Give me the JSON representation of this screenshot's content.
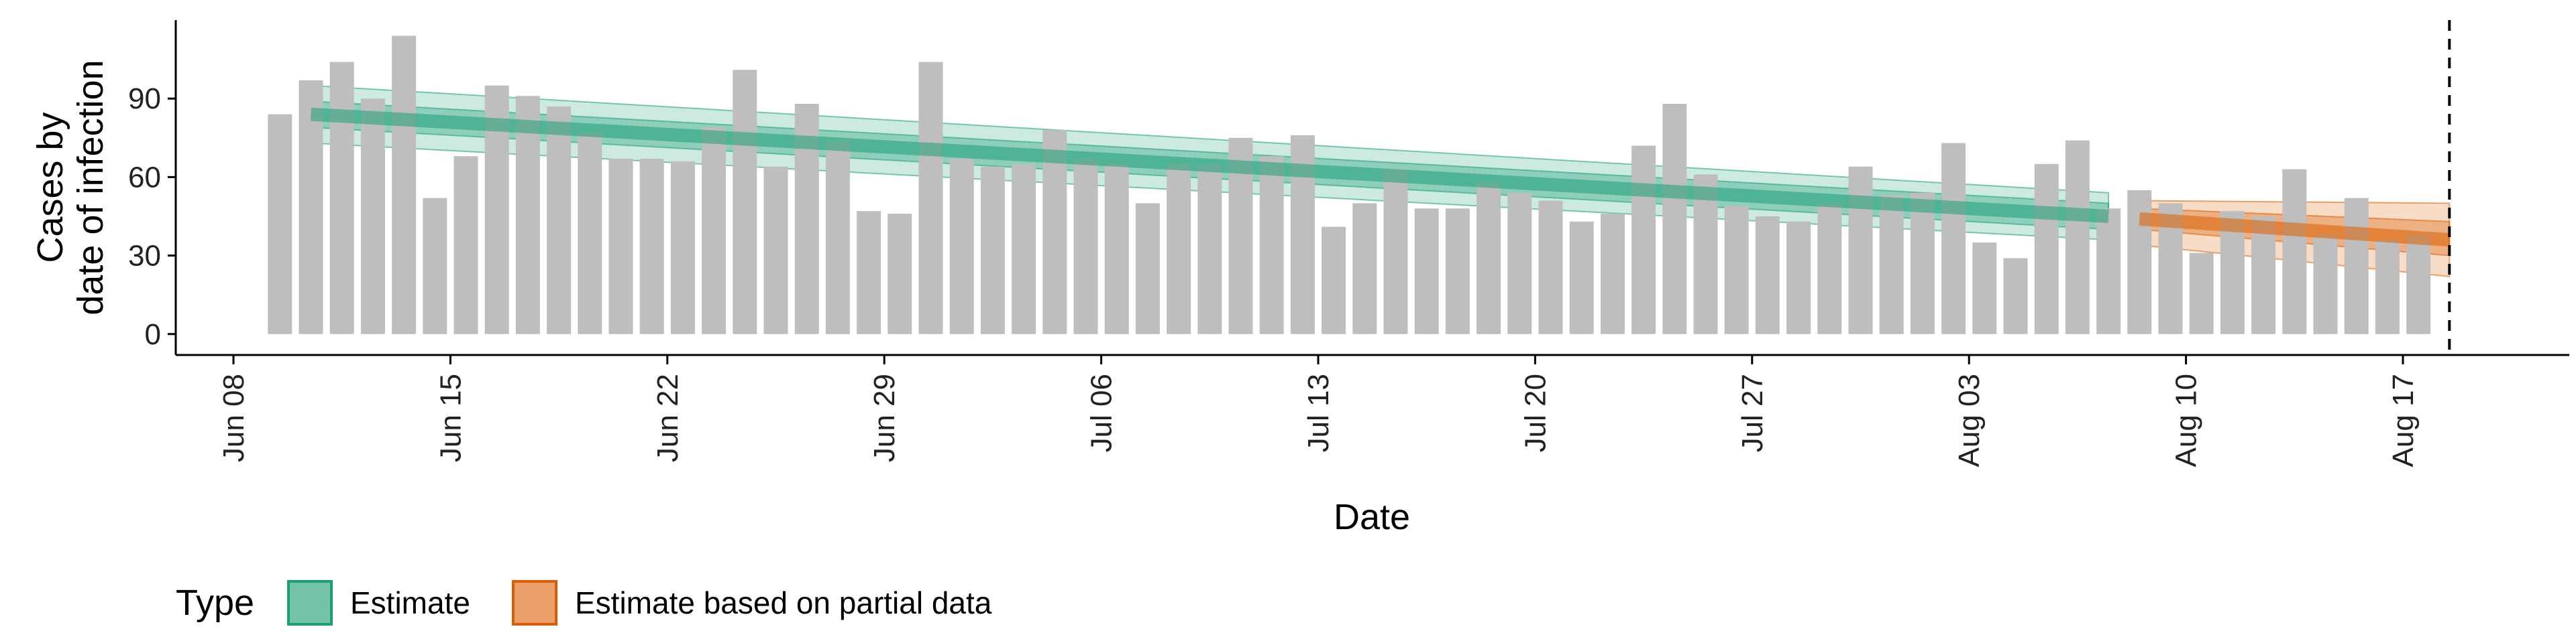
{
  "chart_data": {
    "type": "bar",
    "xlabel": "Date",
    "ylabel_lines": [
      "Cases by",
      "date of infection"
    ],
    "ylim": [
      -8,
      120
    ],
    "yticks": [
      0,
      30,
      60,
      90
    ],
    "x_start": "2020-06-08",
    "x_tick_labels": [
      "Jun 08",
      "Jun 15",
      "Jun 22",
      "Jun 29",
      "Jul 06",
      "Jul 13",
      "Jul 20",
      "Jul 27",
      "Aug 03",
      "Aug 10",
      "Aug 17"
    ],
    "vline_date": "Aug 18",
    "dates": [
      "Jun 09",
      "Jun 10",
      "Jun 11",
      "Jun 12",
      "Jun 13",
      "Jun 14",
      "Jun 15",
      "Jun 16",
      "Jun 17",
      "Jun 18",
      "Jun 19",
      "Jun 20",
      "Jun 21",
      "Jun 22",
      "Jun 23",
      "Jun 24",
      "Jun 25",
      "Jun 26",
      "Jun 27",
      "Jun 28",
      "Jun 29",
      "Jun 30",
      "Jul 01",
      "Jul 02",
      "Jul 03",
      "Jul 04",
      "Jul 05",
      "Jul 06",
      "Jul 07",
      "Jul 08",
      "Jul 09",
      "Jul 10",
      "Jul 11",
      "Jul 12",
      "Jul 13",
      "Jul 14",
      "Jul 15",
      "Jul 16",
      "Jul 17",
      "Jul 18",
      "Jul 19",
      "Jul 20",
      "Jul 21",
      "Jul 22",
      "Jul 23",
      "Jul 24",
      "Jul 25",
      "Jul 26",
      "Jul 27",
      "Jul 28",
      "Jul 29",
      "Jul 30",
      "Jul 31",
      "Aug 01",
      "Aug 02",
      "Aug 03",
      "Aug 04",
      "Aug 05",
      "Aug 06",
      "Aug 07",
      "Aug 08",
      "Aug 09",
      "Aug 10",
      "Aug 11",
      "Aug 12",
      "Aug 13",
      "Aug 14",
      "Aug 15",
      "Aug 16",
      "Aug 17"
    ],
    "cases": [
      84,
      97,
      104,
      90,
      114,
      52,
      68,
      95,
      91,
      87,
      77,
      67,
      67,
      66,
      79,
      101,
      64,
      88,
      74,
      47,
      46,
      104,
      67,
      64,
      65,
      78,
      67,
      65,
      50,
      65,
      65,
      75,
      68,
      76,
      41,
      50,
      63,
      48,
      48,
      58,
      54,
      51,
      43,
      46,
      72,
      88,
      61,
      49,
      45,
      43,
      50,
      64,
      53,
      54,
      73,
      35,
      29,
      65,
      74,
      48,
      55,
      50,
      31,
      47,
      45,
      63,
      38,
      52,
      36,
      38
    ],
    "series": [
      {
        "name": "Estimate",
        "color": "#1b9e77",
        "start_date": "Jun 10",
        "end_date": "Aug 07",
        "median": [
          84,
          45
        ],
        "band50": [
          [
            79,
            89
          ],
          [
            40,
            50
          ]
        ],
        "band90": [
          [
            73,
            95
          ],
          [
            36,
            54
          ]
        ]
      },
      {
        "name": "Estimate based on partial data",
        "color": "#d95f02",
        "start_date": "Aug 08",
        "end_date": "Aug 18",
        "median": [
          44,
          36
        ],
        "band50": [
          [
            40,
            48
          ],
          [
            30,
            43
          ]
        ],
        "band90": [
          [
            34,
            51
          ],
          [
            22,
            50
          ]
        ]
      }
    ],
    "legend_title": "Type",
    "legend_position": "bottom",
    "grid": false,
    "bar_color": "#bebebe"
  }
}
